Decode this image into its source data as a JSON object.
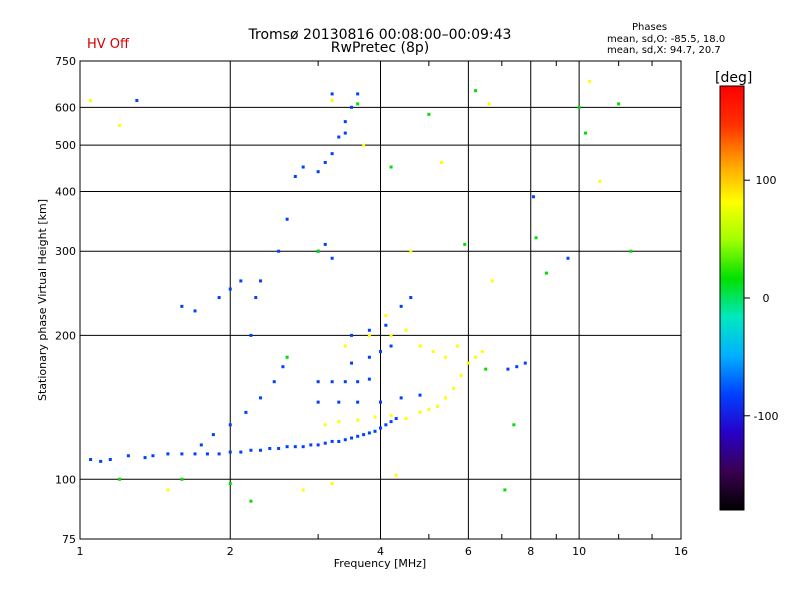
{
  "header": {
    "title_line1": "Tromsø 20130816 00:08:00–00:09:43",
    "title_line2": "RwPretec (8p)",
    "hv_status": "HV Off",
    "hv_color": "#d00000",
    "stats_title": "Phases",
    "stats_line1": "mean, sd,O: -85.5, 18.0",
    "stats_line2": "mean, sd,X:  94.7, 20.7"
  },
  "colorbar": {
    "unit_label": "[deg]",
    "ticks": [
      "100",
      "0",
      "-100"
    ],
    "tick_values": [
      100,
      0,
      -100
    ],
    "range": [
      -180,
      180
    ],
    "colors": [
      "#000000",
      "#3a0050",
      "#2800c8",
      "#0040ff",
      "#00b0ff",
      "#00e8c0",
      "#00e000",
      "#a0ff00",
      "#ffff00",
      "#ffa000",
      "#ff3000",
      "#ff0000"
    ]
  },
  "chart_data": {
    "type": "scatter",
    "title": "Tromsø 20130816 00:08:00–00:09:43",
    "subtitle": "RwPretec (8p)",
    "xlabel": "Frequency [MHz]",
    "ylabel": "Stationary phase Virtual Height [km]",
    "x_scale": "log",
    "y_scale": "log",
    "xlim": [
      1,
      16
    ],
    "ylim": [
      75,
      750
    ],
    "xticks": [
      "1",
      "2",
      "4",
      "6",
      "8",
      "10",
      "16"
    ],
    "xtick_values": [
      1,
      2,
      4,
      6,
      8,
      10,
      16
    ],
    "yticks": [
      "75",
      "100",
      "200",
      "300",
      "400",
      "500",
      "600",
      "750"
    ],
    "ytick_values": [
      75,
      100,
      200,
      300,
      400,
      500,
      600,
      750
    ],
    "grid": true,
    "series": [
      {
        "polarization": "O-mode",
        "color_phase": -90,
        "points": [
          [
            1.05,
            110
          ],
          [
            1.1,
            109
          ],
          [
            1.15,
            110
          ],
          [
            1.25,
            112
          ],
          [
            1.35,
            111
          ],
          [
            1.4,
            112
          ],
          [
            1.5,
            113
          ],
          [
            1.6,
            113
          ],
          [
            1.7,
            113
          ],
          [
            1.8,
            113
          ],
          [
            1.9,
            113
          ],
          [
            2.0,
            114
          ],
          [
            2.1,
            114
          ],
          [
            2.2,
            115
          ],
          [
            2.3,
            115
          ],
          [
            2.4,
            116
          ],
          [
            2.5,
            116
          ],
          [
            2.6,
            117
          ],
          [
            2.7,
            117
          ],
          [
            2.8,
            117
          ],
          [
            2.9,
            118
          ],
          [
            3.0,
            118
          ],
          [
            3.1,
            119
          ],
          [
            3.2,
            120
          ],
          [
            3.3,
            120
          ],
          [
            3.4,
            121
          ],
          [
            3.5,
            122
          ],
          [
            3.6,
            123
          ],
          [
            3.7,
            124
          ],
          [
            3.8,
            125
          ],
          [
            3.9,
            126
          ],
          [
            4.0,
            128
          ],
          [
            4.1,
            130
          ],
          [
            4.2,
            132
          ],
          [
            4.3,
            134
          ],
          [
            1.75,
            118
          ],
          [
            1.85,
            124
          ],
          [
            2.0,
            130
          ],
          [
            2.15,
            138
          ],
          [
            2.3,
            148
          ],
          [
            2.45,
            160
          ],
          [
            2.55,
            172
          ],
          [
            2.2,
            200
          ],
          [
            2.25,
            240
          ],
          [
            2.3,
            260
          ],
          [
            2.5,
            300
          ],
          [
            2.6,
            350
          ],
          [
            2.7,
            430
          ],
          [
            2.8,
            450
          ],
          [
            3.0,
            440
          ],
          [
            3.1,
            460
          ],
          [
            3.2,
            480
          ],
          [
            3.3,
            520
          ],
          [
            3.4,
            560
          ],
          [
            3.5,
            600
          ],
          [
            3.6,
            640
          ],
          [
            3.2,
            640
          ],
          [
            3.4,
            530
          ],
          [
            3.0,
            300
          ],
          [
            3.1,
            310
          ],
          [
            3.2,
            290
          ],
          [
            3.0,
            160
          ],
          [
            3.2,
            160
          ],
          [
            3.4,
            160
          ],
          [
            3.6,
            160
          ],
          [
            3.8,
            162
          ],
          [
            3.0,
            145
          ],
          [
            3.3,
            145
          ],
          [
            3.6,
            145
          ],
          [
            4.0,
            145
          ],
          [
            4.4,
            148
          ],
          [
            4.8,
            150
          ],
          [
            3.5,
            175
          ],
          [
            3.8,
            180
          ],
          [
            4.0,
            185
          ],
          [
            4.2,
            190
          ],
          [
            3.5,
            200
          ],
          [
            3.8,
            205
          ],
          [
            4.1,
            210
          ],
          [
            4.4,
            230
          ],
          [
            4.6,
            240
          ],
          [
            1.6,
            230
          ],
          [
            1.7,
            225
          ],
          [
            1.9,
            240
          ],
          [
            2.0,
            250
          ],
          [
            2.1,
            260
          ],
          [
            7.2,
            170
          ],
          [
            7.5,
            172
          ],
          [
            7.8,
            175
          ],
          [
            1.3,
            620
          ],
          [
            8.1,
            390
          ],
          [
            9.5,
            290
          ]
        ]
      },
      {
        "polarization": "X-mode",
        "color_phase": 95,
        "points": [
          [
            3.1,
            130
          ],
          [
            3.3,
            132
          ],
          [
            3.6,
            133
          ],
          [
            3.9,
            135
          ],
          [
            4.2,
            136
          ],
          [
            4.5,
            134
          ],
          [
            4.8,
            138
          ],
          [
            5.0,
            140
          ],
          [
            5.2,
            142
          ],
          [
            5.4,
            148
          ],
          [
            5.6,
            155
          ],
          [
            5.8,
            165
          ],
          [
            6.0,
            175
          ],
          [
            6.2,
            180
          ],
          [
            6.4,
            185
          ],
          [
            4.2,
            200
          ],
          [
            4.5,
            205
          ],
          [
            4.8,
            190
          ],
          [
            5.1,
            185
          ],
          [
            5.4,
            180
          ],
          [
            5.7,
            190
          ],
          [
            3.4,
            190
          ],
          [
            3.8,
            200
          ],
          [
            4.1,
            220
          ],
          [
            6.6,
            610
          ],
          [
            6.7,
            260
          ],
          [
            10.5,
            680
          ],
          [
            11.0,
            420
          ],
          [
            1.05,
            620
          ],
          [
            1.2,
            550
          ],
          [
            3.2,
            620
          ],
          [
            3.7,
            500
          ],
          [
            4.6,
            300
          ],
          [
            5.3,
            460
          ],
          [
            1.5,
            95
          ],
          [
            2.8,
            95
          ],
          [
            3.2,
            98
          ],
          [
            4.3,
            102
          ]
        ]
      },
      {
        "polarization": "scattered",
        "color_phase": 30,
        "points": [
          [
            1.6,
            100
          ],
          [
            2.0,
            98
          ],
          [
            2.6,
            180
          ],
          [
            3.6,
            610
          ],
          [
            5.0,
            580
          ],
          [
            6.5,
            170
          ],
          [
            7.1,
            95
          ],
          [
            7.4,
            130
          ],
          [
            8.6,
            270
          ],
          [
            10.3,
            530
          ],
          [
            12.0,
            610
          ],
          [
            4.2,
            450
          ],
          [
            5.9,
            310
          ],
          [
            3.0,
            300
          ],
          [
            2.2,
            90
          ],
          [
            1.2,
            100
          ],
          [
            6.2,
            650
          ],
          [
            10.0,
            600
          ],
          [
            12.7,
            300
          ],
          [
            8.2,
            320
          ]
        ]
      }
    ]
  }
}
